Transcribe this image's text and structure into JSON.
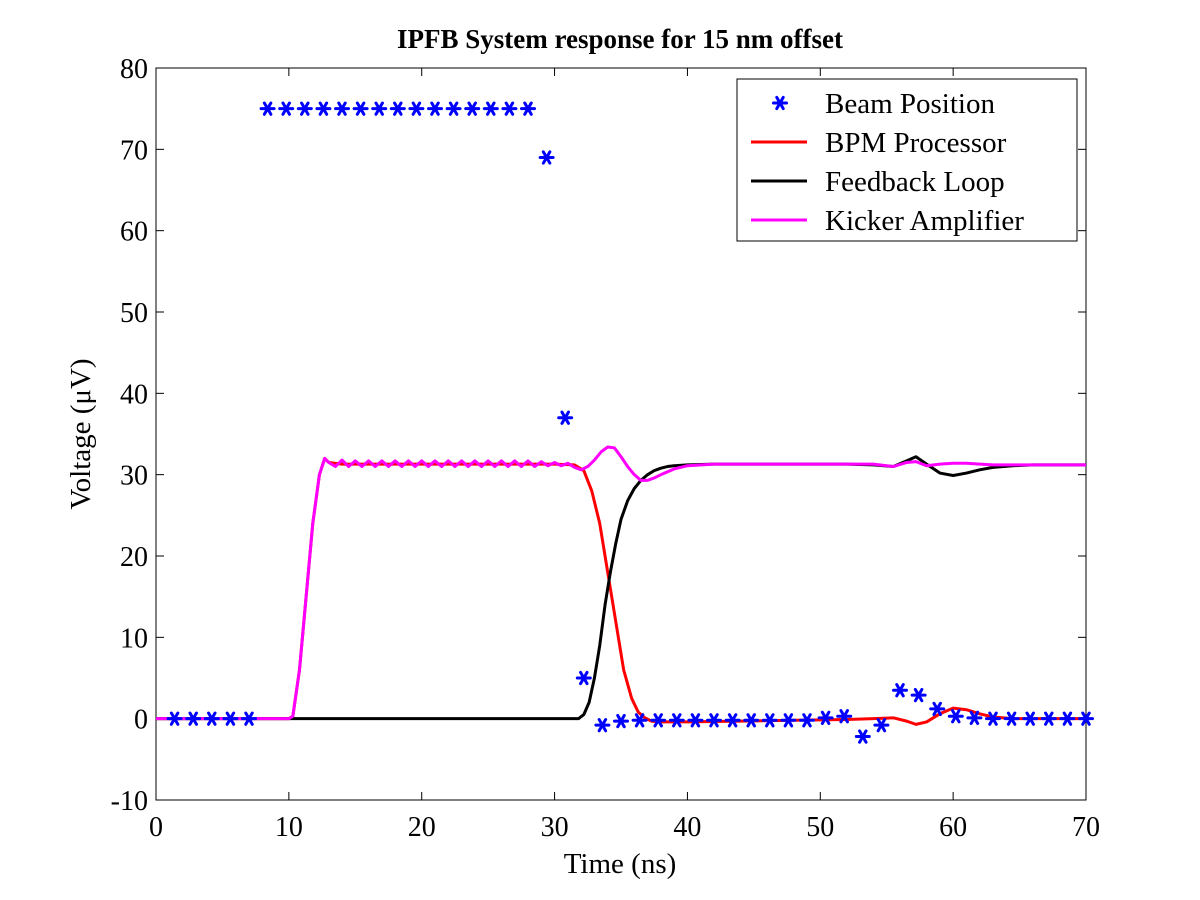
{
  "chart_data": {
    "type": "line",
    "title": "IPFB System response for 15 nm offset",
    "xlabel": "Time (ns)",
    "ylabel": "Voltage (μV)",
    "xlim": [
      0,
      70
    ],
    "ylim": [
      -10,
      80
    ],
    "xticks": [
      0,
      10,
      20,
      30,
      40,
      50,
      60,
      70
    ],
    "yticks": [
      -10,
      0,
      10,
      20,
      30,
      40,
      50,
      60,
      70,
      80
    ],
    "xtick_labels": [
      "0",
      "10",
      "20",
      "30",
      "40",
      "50",
      "60",
      "70"
    ],
    "ytick_labels": [
      "-10",
      "0",
      "10",
      "20",
      "30",
      "40",
      "50",
      "60",
      "70",
      "80"
    ],
    "grid": false,
    "legend_position": "top-right",
    "series": [
      {
        "name": "Beam Position",
        "style": "markers",
        "color": "#0000ff",
        "x": [
          1.4,
          2.8,
          4.2,
          5.6,
          7.0,
          8.4,
          9.8,
          11.2,
          12.6,
          14.0,
          15.4,
          16.8,
          18.2,
          19.6,
          21.0,
          22.4,
          23.8,
          25.2,
          26.6,
          28.0,
          29.4,
          30.8,
          32.2,
          33.6,
          35.0,
          36.4,
          37.8,
          39.2,
          40.6,
          42.0,
          43.4,
          44.8,
          46.2,
          47.6,
          49.0,
          50.4,
          51.8,
          53.2,
          54.6,
          56.0,
          57.4,
          58.8,
          60.2,
          61.6,
          63.0,
          64.4,
          65.8,
          67.2,
          68.6,
          70.0
        ],
        "y": [
          0,
          0,
          0,
          0,
          0,
          75,
          75,
          75,
          75,
          75,
          75,
          75,
          75,
          75,
          75,
          75,
          75,
          75,
          75,
          75,
          69,
          37,
          5,
          -0.8,
          -0.3,
          -0.2,
          -0.2,
          -0.2,
          -0.2,
          -0.2,
          -0.2,
          -0.2,
          -0.2,
          -0.2,
          -0.2,
          0.1,
          0.3,
          -2.2,
          -0.8,
          3.5,
          2.9,
          1.2,
          0.3,
          0.1,
          0.0,
          0.0,
          0.0,
          0.0,
          0.0,
          0.0
        ]
      },
      {
        "name": "BPM Processor",
        "style": "line",
        "color": "#ff0000",
        "x": [
          0,
          10,
          10.3,
          10.8,
          11.3,
          11.8,
          12.3,
          12.7,
          13.0,
          14,
          16,
          18,
          20,
          22,
          24,
          26,
          28,
          30,
          31.5,
          32.2,
          32.8,
          33.4,
          34.0,
          34.6,
          35.2,
          35.8,
          36.3,
          36.8,
          37.3,
          38.0,
          40,
          44,
          48,
          52,
          54,
          55.5,
          56.5,
          57.2,
          58.0,
          59.0,
          60.0,
          61.0,
          62.0,
          63.0,
          64.5,
          66,
          70
        ],
        "y": [
          0,
          0,
          0.3,
          6,
          15,
          24,
          30,
          32,
          31.5,
          31.3,
          31.3,
          31.3,
          31.3,
          31.3,
          31.3,
          31.3,
          31.3,
          31.3,
          31.2,
          30.5,
          28,
          24,
          18,
          12,
          6,
          2.5,
          0.8,
          0.1,
          -0.3,
          -0.4,
          -0.4,
          -0.3,
          -0.2,
          -0.1,
          0.0,
          0.1,
          -0.3,
          -0.7,
          -0.4,
          0.6,
          1.3,
          1.1,
          0.6,
          0.2,
          0.0,
          0.0,
          0.0
        ]
      },
      {
        "name": "Feedback Loop",
        "style": "line",
        "color": "#000000",
        "x": [
          0,
          20,
          31.8,
          32.2,
          32.6,
          33.0,
          33.4,
          33.8,
          34.2,
          34.6,
          35.0,
          35.5,
          36.0,
          36.5,
          37.0,
          37.5,
          38.0,
          38.5,
          39.0,
          40.0,
          42,
          46,
          50,
          52,
          54,
          55.5,
          56.5,
          57.2,
          58.0,
          59.0,
          60.0,
          61.0,
          62.0,
          63.0,
          64.5,
          66,
          70
        ],
        "y": [
          0,
          0,
          0,
          0.5,
          2,
          5,
          9,
          14,
          18,
          21.5,
          24.5,
          26.8,
          28.3,
          29.3,
          30.0,
          30.5,
          30.8,
          31.0,
          31.1,
          31.2,
          31.3,
          31.3,
          31.3,
          31.3,
          31.2,
          31.0,
          31.7,
          32.2,
          31.3,
          30.2,
          29.9,
          30.2,
          30.6,
          30.9,
          31.1,
          31.2,
          31.2
        ]
      },
      {
        "name": "Kicker Amplifier",
        "style": "line",
        "color": "#ff00ff",
        "x": [
          0,
          10,
          10.3,
          10.8,
          11.3,
          11.8,
          12.3,
          12.7,
          13.0,
          13.5,
          14.0,
          14.5,
          15.0,
          15.5,
          16.0,
          16.5,
          17.0,
          17.5,
          18.0,
          18.5,
          19.0,
          19.5,
          20.0,
          20.5,
          21.0,
          21.5,
          22.0,
          22.5,
          23.0,
          23.5,
          24.0,
          24.5,
          25.0,
          25.5,
          26.0,
          26.5,
          27.0,
          27.5,
          28.0,
          28.5,
          29.0,
          29.5,
          30.0,
          30.5,
          31.0,
          31.5,
          32.0,
          32.5,
          33.0,
          33.5,
          34.0,
          34.5,
          35.0,
          35.5,
          36.0,
          36.5,
          37.0,
          37.5,
          38.0,
          39.0,
          40.0,
          42,
          46,
          50,
          52,
          54,
          55.5,
          56.5,
          57.2,
          58.0,
          59.0,
          60.0,
          61.0,
          62.0,
          63.0,
          64.5,
          66,
          70
        ],
        "y": [
          0,
          0,
          0.3,
          6,
          15,
          24,
          30,
          32,
          31.5,
          31.0,
          31.8,
          31.0,
          31.7,
          31.0,
          31.7,
          31.0,
          31.7,
          31.0,
          31.7,
          31.0,
          31.7,
          31.0,
          31.7,
          31.0,
          31.7,
          31.0,
          31.7,
          31.0,
          31.7,
          31.0,
          31.7,
          31.0,
          31.7,
          31.0,
          31.7,
          31.0,
          31.7,
          31.0,
          31.7,
          31.0,
          31.6,
          31.1,
          31.5,
          31.1,
          31.4,
          30.9,
          30.6,
          31.0,
          31.8,
          32.8,
          33.4,
          33.3,
          32.2,
          31.0,
          30.0,
          29.3,
          29.3,
          29.6,
          30.0,
          30.7,
          31.1,
          31.3,
          31.3,
          31.3,
          31.3,
          31.3,
          31.0,
          31.5,
          31.6,
          31.1,
          31.3,
          31.4,
          31.4,
          31.3,
          31.2,
          31.2,
          31.2,
          31.2
        ]
      }
    ]
  }
}
